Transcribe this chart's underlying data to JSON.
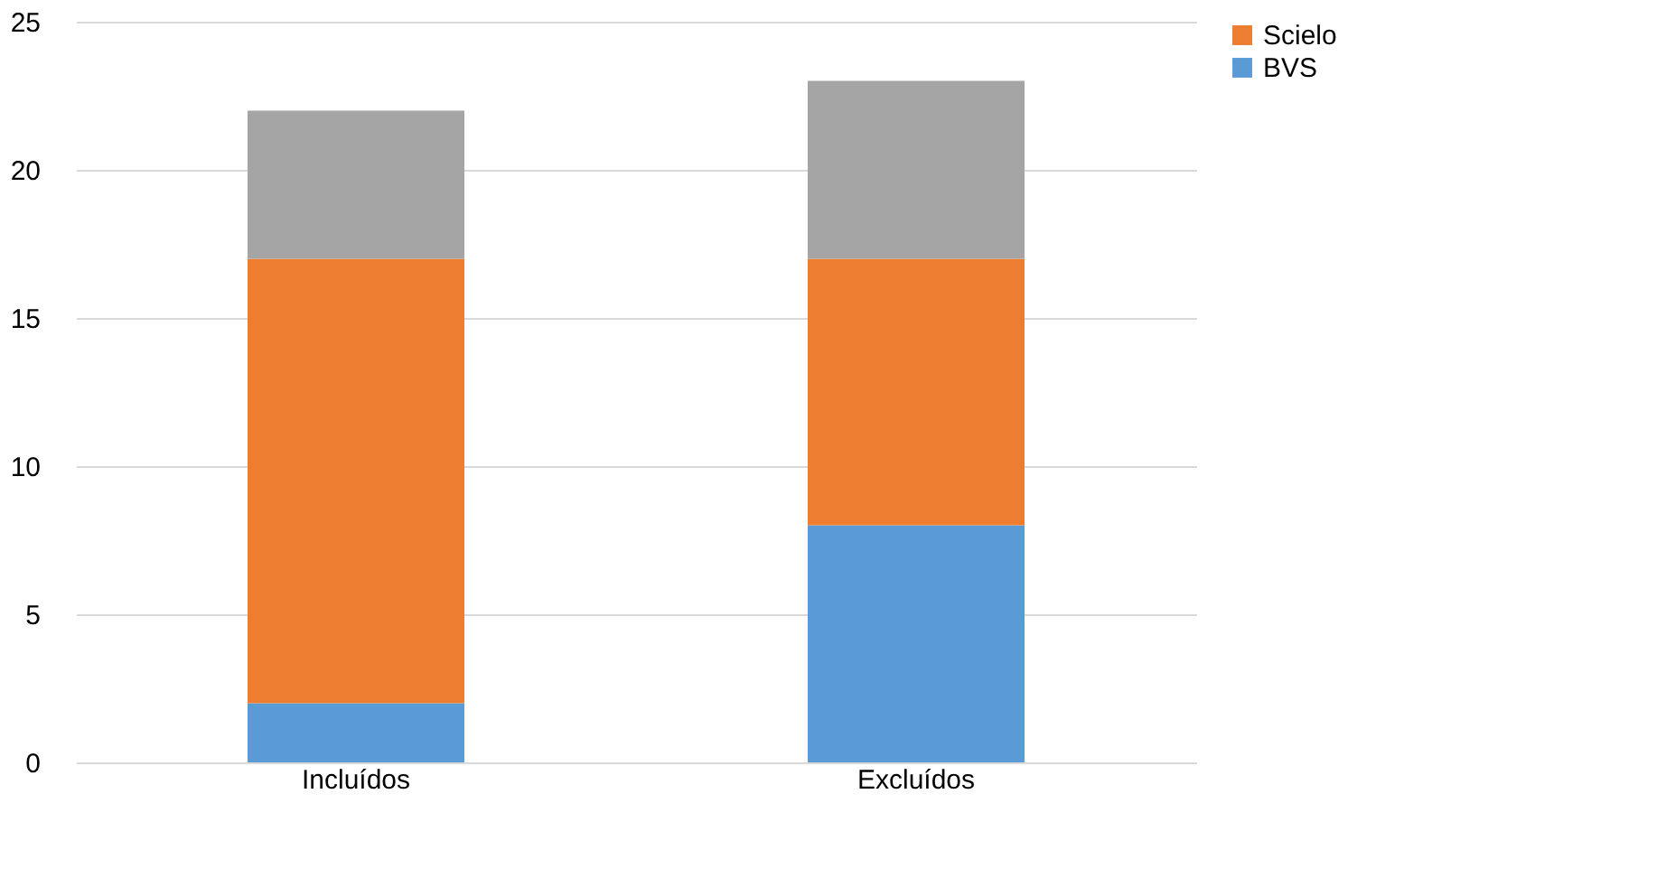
{
  "chart_data": {
    "type": "bar",
    "stacked": true,
    "categories": [
      "Incluídos",
      "Excluídos"
    ],
    "series": [
      {
        "name": "BVS",
        "color": "#5b9bd5",
        "values": [
          2,
          8
        ]
      },
      {
        "name": "Scielo",
        "color": "#ed7d31",
        "values": [
          15,
          9
        ]
      },
      {
        "color": "#a5a5a5",
        "values": [
          5,
          6
        ]
      }
    ],
    "ylim": [
      0,
      25
    ],
    "yticks": [
      0,
      5,
      10,
      15,
      20,
      25
    ],
    "grid": "y",
    "legend": "right"
  }
}
